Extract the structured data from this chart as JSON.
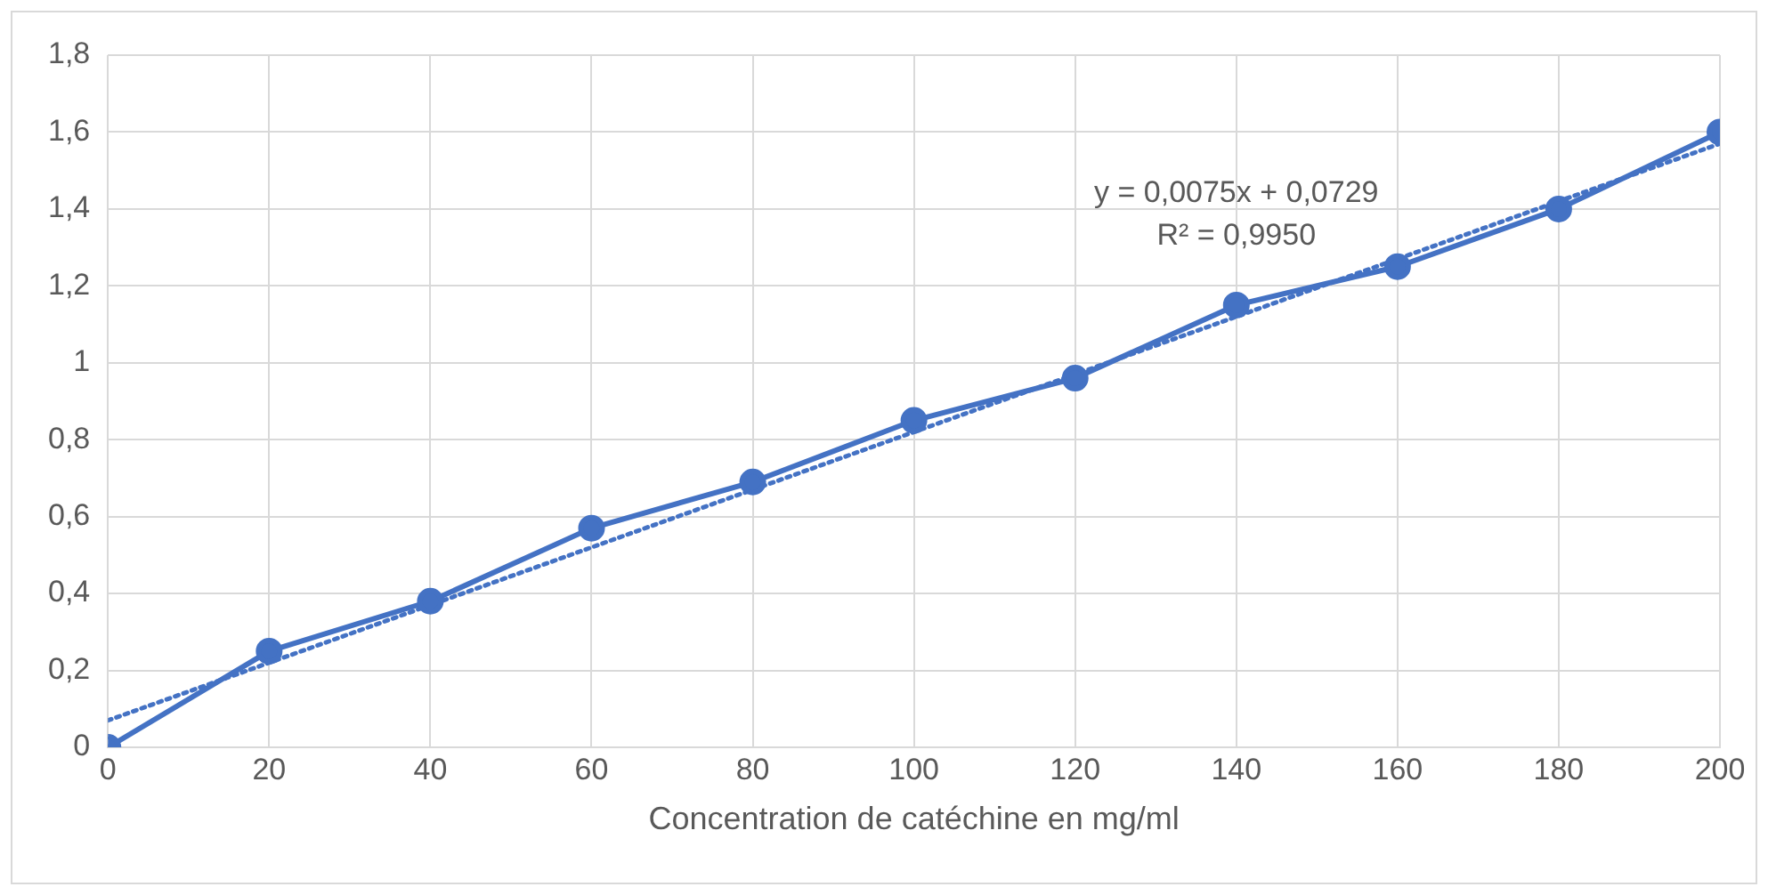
{
  "chart_data": {
    "type": "line",
    "xlabel": "Concentration de catéchine en mg/ml",
    "x": [
      0,
      20,
      40,
      60,
      80,
      100,
      120,
      140,
      160,
      180,
      200
    ],
    "xlim": [
      0,
      200
    ],
    "xticks": [
      0,
      20,
      40,
      60,
      80,
      100,
      120,
      140,
      160,
      180,
      200
    ],
    "ylim": [
      0,
      1.8
    ],
    "yticks": [
      0,
      {
        "value": 0.2,
        "label": "0,2"
      },
      {
        "value": 0.4,
        "label": "0,4"
      },
      {
        "value": 0.6,
        "label": "0,6"
      },
      {
        "value": 0.8,
        "label": "0,8"
      },
      1,
      {
        "value": 1.2,
        "label": "1,2"
      },
      {
        "value": 1.4,
        "label": "1,4"
      },
      {
        "value": 1.6,
        "label": "1,6"
      },
      {
        "value": 1.8,
        "label": "1,8"
      }
    ],
    "series": [
      {
        "color": "#4472c4",
        "marker": "circle",
        "line_style": "solid",
        "values": [
          0,
          0.25,
          0.38,
          0.57,
          0.69,
          0.85,
          0.96,
          1.15,
          1.25,
          1.4,
          1.6
        ]
      },
      {
        "type": "line",
        "color": "#4472c4",
        "marker": "none",
        "line_style": "dotted",
        "x": [
          0,
          200
        ],
        "values": [
          0.07,
          1.57
        ]
      }
    ],
    "annotations": [
      "y = 0,0075x + 0,0729",
      "R² = 0,9950"
    ],
    "grid": true,
    "legend": false
  }
}
